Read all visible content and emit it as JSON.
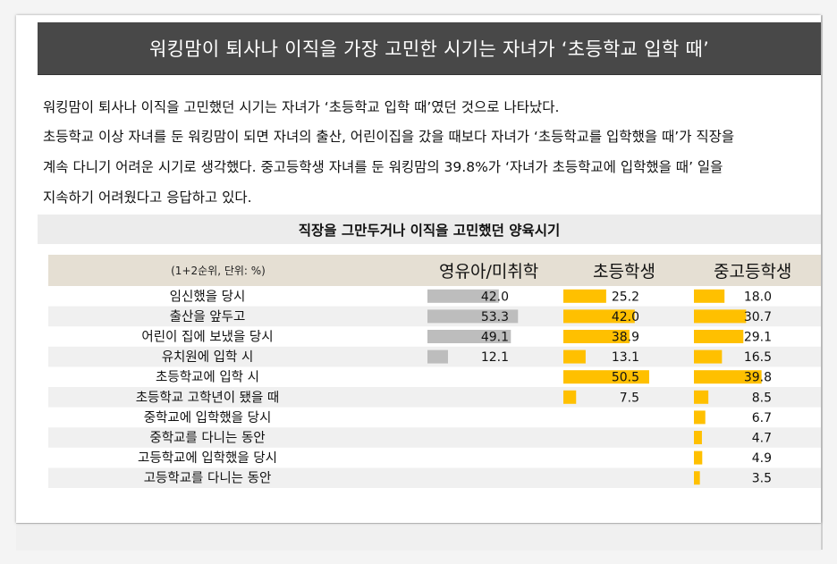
{
  "title": "워킹맘이 퇴사나 이직을 가장 고민한 시기는 자녀가 ‘초등학교 입학 때’",
  "paragraph_lines": [
    "워킹맘이 퇴사나 이직을 고민했던 시기는 자녀가 ‘초등학교 입학 때’였던 것으로 나타났다.",
    "초등학교 이상 자녀를 둔 워킹맘이 되면 자녀의 출산, 어린이집을 갔을 때보다 자녀가 ‘초등학교를 입학했을 때’가 직장을",
    "계속 다니기 어려운 시기로 생각했다. 중고등학생 자녀를 둔 워킹맘의 39.8%가 ‘자녀가 초등학교에 입학했을 때’ 일을",
    "지속하기 어려웠다고 응답하고 있다."
  ],
  "chart_data": {
    "type": "bar",
    "title": "직장을 그만두거나 이직을 고민했던 양육시기",
    "unit_note": "(1+2순위, 단위: %)",
    "categories": [
      "임신했을 당시",
      "출산을 앞두고",
      "어린이 집에 보냈을 당시",
      "유치원에 입학 시",
      "초등학교에 입학 시",
      "초등학교 고학년이 됐을 때",
      "중학교에 입학했을 당시",
      "중학교를 다니는 동안",
      "고등학교에 입학했을 당시",
      "고등학교를 다니는 동안"
    ],
    "series": [
      {
        "name": "영유아/미취학",
        "color": "#bdbdbd",
        "values": [
          42.0,
          53.3,
          49.1,
          12.1,
          null,
          null,
          null,
          null,
          null,
          null
        ],
        "labels": [
          "42.0",
          "53.3",
          "49.1",
          "12.1",
          "",
          "",
          "",
          "",
          "",
          ""
        ]
      },
      {
        "name": "초등학생",
        "color": "#ffc000",
        "values": [
          25.2,
          42.0,
          38.9,
          13.1,
          50.5,
          7.5,
          null,
          null,
          null,
          null
        ],
        "labels": [
          "25.2",
          "42.0",
          "38.9",
          "13.1",
          "50.5",
          "7.5",
          "",
          "",
          "",
          ""
        ]
      },
      {
        "name": "중고등학생",
        "color": "#ffc000",
        "values": [
          18.0,
          30.7,
          29.1,
          16.5,
          39.8,
          8.5,
          6.7,
          4.7,
          4.9,
          3.5
        ],
        "labels": [
          "18.0",
          "30.7",
          "29.1",
          "16.5",
          "39.8",
          "8.5",
          "6.7",
          "4.7",
          "4.9",
          "3.5"
        ]
      }
    ],
    "grid": false
  }
}
